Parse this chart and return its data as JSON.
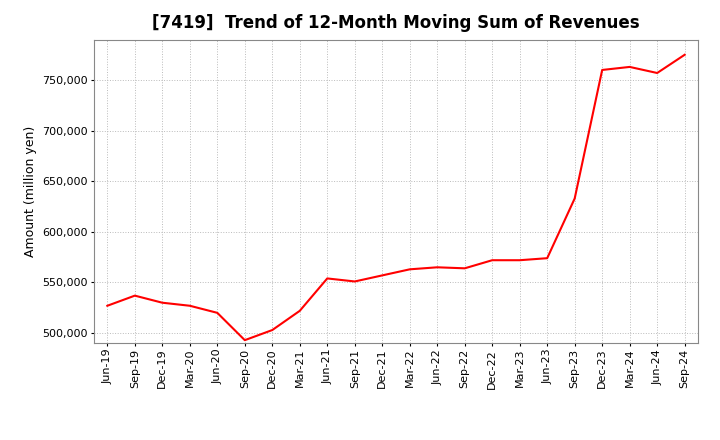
{
  "title": "[7419]  Trend of 12-Month Moving Sum of Revenues",
  "ylabel": "Amount (million yen)",
  "line_color": "#FF0000",
  "background_color": "#FFFFFF",
  "plot_bg_color": "#FFFFFF",
  "grid_color": "#BBBBBB",
  "x_labels": [
    "Jun-19",
    "Sep-19",
    "Dec-19",
    "Mar-20",
    "Jun-20",
    "Sep-20",
    "Dec-20",
    "Mar-21",
    "Jun-21",
    "Sep-21",
    "Dec-21",
    "Mar-22",
    "Jun-22",
    "Sep-22",
    "Dec-22",
    "Mar-23",
    "Jun-23",
    "Sep-23",
    "Dec-23",
    "Mar-24",
    "Jun-24",
    "Sep-24"
  ],
  "values": [
    527000,
    537000,
    530000,
    527000,
    520000,
    493000,
    503000,
    522000,
    554000,
    551000,
    557000,
    563000,
    565000,
    564000,
    572000,
    572000,
    574000,
    633000,
    760000,
    763000,
    757000,
    775000
  ],
  "ylim": [
    490000,
    790000
  ],
  "yticks": [
    500000,
    550000,
    600000,
    650000,
    700000,
    750000
  ],
  "title_fontsize": 12,
  "label_fontsize": 9,
  "tick_fontsize": 8
}
